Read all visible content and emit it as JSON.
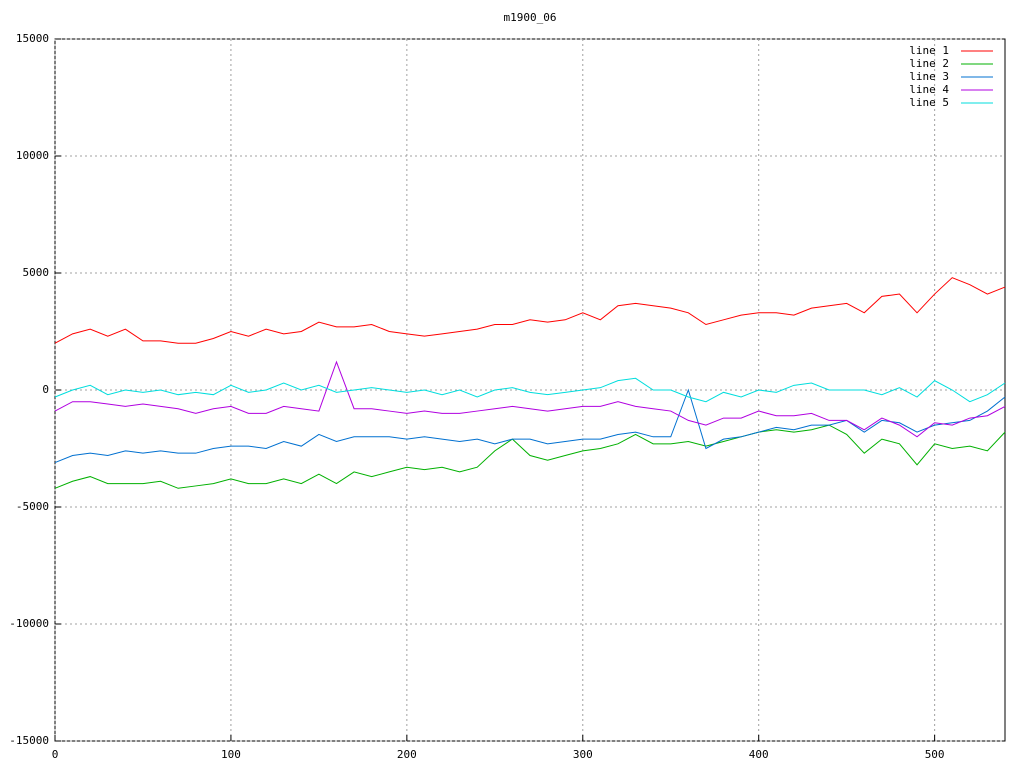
{
  "chart_data": {
    "type": "line",
    "title": "m1900_06",
    "x": [
      0,
      10,
      20,
      30,
      40,
      50,
      60,
      70,
      80,
      90,
      100,
      110,
      120,
      130,
      140,
      150,
      160,
      170,
      180,
      190,
      200,
      210,
      220,
      230,
      240,
      250,
      260,
      270,
      280,
      290,
      300,
      310,
      320,
      330,
      340,
      350,
      360,
      370,
      380,
      390,
      400,
      410,
      420,
      430,
      440,
      450,
      460,
      470,
      480,
      490,
      500,
      510,
      520,
      530,
      540
    ],
    "series": [
      {
        "name": "line 1",
        "color": "#ff0000",
        "values": [
          2000,
          2400,
          2600,
          2300,
          2600,
          2100,
          2100,
          2000,
          2000,
          2200,
          2500,
          2300,
          2600,
          2400,
          2500,
          2900,
          2700,
          2700,
          2800,
          2500,
          2400,
          2300,
          2400,
          2500,
          2600,
          2800,
          2800,
          3000,
          2900,
          3000,
          3300,
          3000,
          3600,
          3700,
          3600,
          3500,
          3300,
          2800,
          3000,
          3200,
          3300,
          3300,
          3200,
          3500,
          3600,
          3700,
          3300,
          4000,
          4100,
          3300,
          4100,
          4800,
          4500,
          4100,
          4400
        ]
      },
      {
        "name": "line 2",
        "color": "#00b000",
        "values": [
          -4200,
          -3900,
          -3700,
          -4000,
          -4000,
          -4000,
          -3900,
          -4200,
          -4100,
          -4000,
          -3800,
          -4000,
          -4000,
          -3800,
          -4000,
          -3600,
          -4000,
          -3500,
          -3700,
          -3500,
          -3300,
          -3400,
          -3300,
          -3500,
          -3300,
          -2600,
          -2100,
          -2800,
          -3000,
          -2800,
          -2600,
          -2500,
          -2300,
          -1900,
          -2300,
          -2300,
          -2200,
          -2400,
          -2200,
          -2000,
          -1800,
          -1700,
          -1800,
          -1700,
          -1500,
          -1900,
          -2700,
          -2100,
          -2300,
          -3200,
          -2300,
          -2500,
          -2400,
          -2600,
          -1800
        ]
      },
      {
        "name": "line 3",
        "color": "#0070d0",
        "values": [
          -3100,
          -2800,
          -2700,
          -2800,
          -2600,
          -2700,
          -2600,
          -2700,
          -2700,
          -2500,
          -2400,
          -2400,
          -2500,
          -2200,
          -2400,
          -1900,
          -2200,
          -2000,
          -2000,
          -2000,
          -2100,
          -2000,
          -2100,
          -2200,
          -2100,
          -2300,
          -2100,
          -2100,
          -2300,
          -2200,
          -2100,
          -2100,
          -1900,
          -1800,
          -2000,
          -2000,
          0,
          -2500,
          -2100,
          -2000,
          -1800,
          -1600,
          -1700,
          -1500,
          -1500,
          -1300,
          -1800,
          -1300,
          -1400,
          -1800,
          -1500,
          -1400,
          -1300,
          -900,
          -300
        ]
      },
      {
        "name": "line 4",
        "color": "#b000e0",
        "values": [
          -900,
          -500,
          -500,
          -600,
          -700,
          -600,
          -700,
          -800,
          -1000,
          -800,
          -700,
          -1000,
          -1000,
          -700,
          -800,
          -900,
          1200,
          -800,
          -800,
          -900,
          -1000,
          -900,
          -1000,
          -1000,
          -900,
          -800,
          -700,
          -800,
          -900,
          -800,
          -700,
          -700,
          -500,
          -700,
          -800,
          -900,
          -1300,
          -1500,
          -1200,
          -1200,
          -900,
          -1100,
          -1100,
          -1000,
          -1300,
          -1300,
          -1700,
          -1200,
          -1500,
          -2000,
          -1400,
          -1500,
          -1200,
          -1100,
          -700
        ]
      },
      {
        "name": "line 5",
        "color": "#00dddd",
        "values": [
          -300,
          0,
          200,
          -200,
          0,
          -100,
          0,
          -200,
          -100,
          -200,
          200,
          -100,
          0,
          300,
          0,
          200,
          -100,
          0,
          100,
          0,
          -100,
          0,
          -200,
          0,
          -300,
          0,
          100,
          -100,
          -200,
          -100,
          0,
          100,
          400,
          500,
          0,
          0,
          -300,
          -500,
          -100,
          -300,
          0,
          -100,
          200,
          300,
          0,
          0,
          0,
          -200,
          100,
          -300,
          400,
          0,
          -500,
          -200,
          300
        ]
      }
    ],
    "xlim": [
      0,
      540
    ],
    "xticks": [
      0,
      100,
      200,
      300,
      400,
      500
    ],
    "ylim": [
      -15000,
      15000
    ],
    "yticks": [
      -15000,
      -10000,
      -5000,
      0,
      5000,
      10000,
      15000
    ],
    "grid": true,
    "legend": "top-right"
  }
}
